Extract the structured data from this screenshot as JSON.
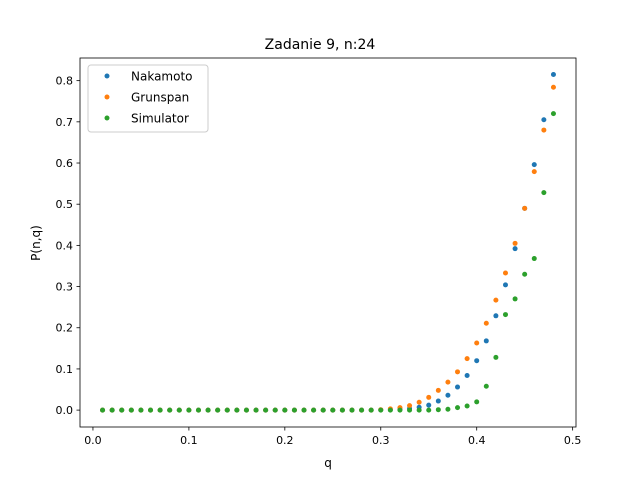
{
  "chart_data": {
    "type": "scatter",
    "title": "Zadanie 9, n:24",
    "xlabel": "q",
    "ylabel": "P(n,q)",
    "xlim": [
      -0.0135,
      0.5035
    ],
    "ylim": [
      -0.041,
      0.855
    ],
    "xticks": [
      "0.0",
      "0.1",
      "0.2",
      "0.3",
      "0.4",
      "0.5"
    ],
    "xtick_values": [
      0.0,
      0.1,
      0.2,
      0.3,
      0.4,
      0.5
    ],
    "yticks": [
      "0.0",
      "0.1",
      "0.2",
      "0.3",
      "0.4",
      "0.5",
      "0.6",
      "0.7",
      "0.8"
    ],
    "ytick_values": [
      0.0,
      0.1,
      0.2,
      0.3,
      0.4,
      0.5,
      0.6,
      0.7,
      0.8
    ],
    "grid": false,
    "legend_position": "top-left",
    "x": [
      0.01,
      0.02,
      0.03,
      0.04,
      0.05,
      0.06,
      0.07,
      0.08,
      0.09,
      0.1,
      0.11,
      0.12,
      0.13,
      0.14,
      0.15,
      0.16,
      0.17,
      0.18,
      0.19,
      0.2,
      0.21,
      0.22,
      0.23,
      0.24,
      0.25,
      0.26,
      0.27,
      0.28,
      0.29,
      0.3,
      0.31,
      0.32,
      0.33,
      0.34,
      0.35,
      0.36,
      0.37,
      0.38,
      0.39,
      0.4,
      0.41,
      0.42,
      0.43,
      0.44,
      0.45,
      0.46,
      0.47,
      0.48
    ],
    "series": [
      {
        "name": "Nakamoto",
        "color": "#1f77b4",
        "values": [
          0,
          0,
          0,
          0,
          0,
          0,
          0,
          0,
          0,
          0,
          0,
          0,
          0,
          0,
          0,
          0,
          0,
          0,
          0,
          0,
          0,
          0,
          0,
          0,
          0,
          0,
          0,
          0,
          0,
          0.0005,
          0.001,
          0.002,
          0.004,
          0.007,
          0.012,
          0.022,
          0.036,
          0.056,
          0.084,
          0.12,
          0.168,
          0.229,
          0.304,
          0.392,
          0.49,
          0.596,
          0.705,
          0.815
        ]
      },
      {
        "name": "Grunspan",
        "color": "#ff7f0e",
        "values": [
          0,
          0,
          0,
          0,
          0,
          0,
          0,
          0,
          0,
          0,
          0,
          0,
          0,
          0,
          0,
          0,
          0,
          0,
          0,
          0,
          0,
          0,
          0,
          0,
          0,
          0,
          0,
          0,
          0,
          0.001,
          0.003,
          0.006,
          0.011,
          0.019,
          0.031,
          0.048,
          0.068,
          0.093,
          0.125,
          0.163,
          0.211,
          0.267,
          0.333,
          0.405,
          0.49,
          0.579,
          0.68,
          0.784
        ]
      },
      {
        "name": "Simulator",
        "color": "#2ca02c",
        "values": [
          0,
          0,
          0,
          0,
          0,
          0,
          0,
          0,
          0,
          0,
          0,
          0,
          0,
          0,
          0,
          0,
          0,
          0,
          0,
          0,
          0,
          0,
          0,
          0,
          0,
          0,
          0,
          0,
          0,
          0,
          0,
          0,
          0,
          0,
          0,
          0.001,
          0.002,
          0.006,
          0.01,
          0.02,
          0.058,
          0.128,
          0.232,
          0.27,
          0.33,
          0.368,
          0.528,
          0.72
        ]
      }
    ]
  }
}
